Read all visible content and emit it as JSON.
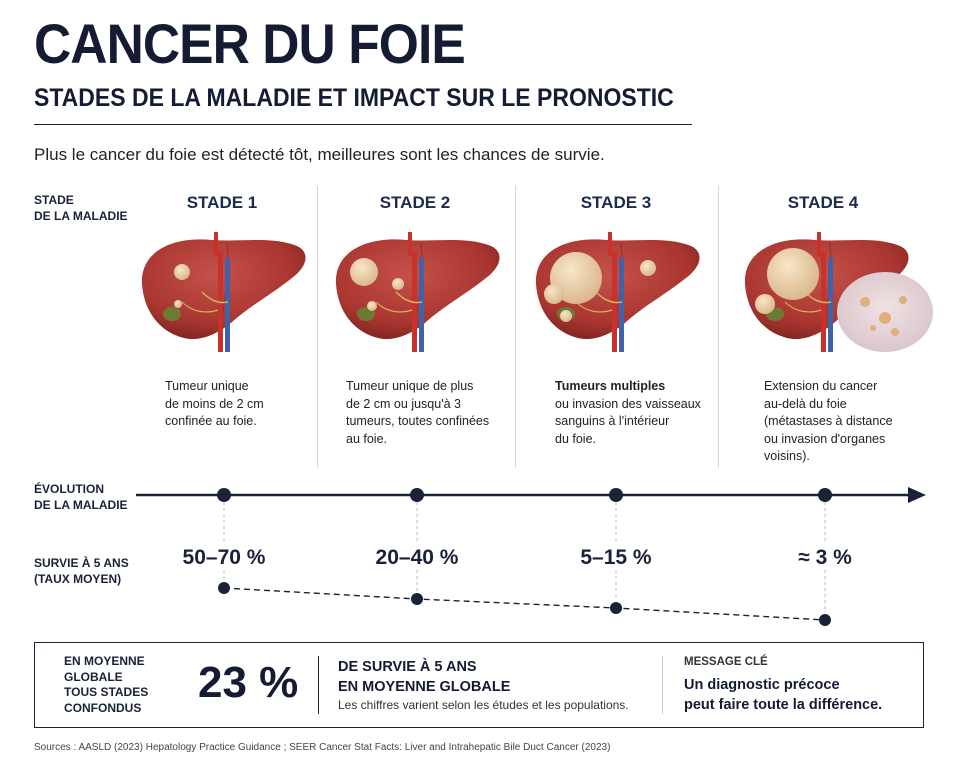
{
  "title": "CANCER DU FOIE",
  "subtitle": "STADES DE LA MALADIE ET IMPACT SUR LE PRONOSTIC",
  "intro": "Plus le cancer du foie est détecté tôt, meilleures sont les chances de survie.",
  "row_labels": {
    "stage": [
      "STADE",
      "DE LA MALADIE"
    ],
    "evolution": [
      "ÉVOLUTION",
      "DE LA MALADIE"
    ],
    "survival": [
      "SURVIE À 5 ANS",
      "(TAUX MOYEN)"
    ]
  },
  "stages": [
    {
      "title": "STADE 1",
      "bold": "",
      "lines": [
        "Tumeur unique",
        "de moins de 2 cm",
        "confinée au foie."
      ],
      "survival": "50–70 %",
      "survival_value": 60
    },
    {
      "title": "STADE 2",
      "bold": "",
      "lines": [
        "Tumeur unique de plus",
        "de 2 cm ou jusqu'à 3",
        "tumeurs, toutes confinées",
        "au foie."
      ],
      "survival": "20–40 %",
      "survival_value": 30
    },
    {
      "title": "STADE 3",
      "bold": "Tumeurs multiples",
      "lines": [
        "ou invasion des vaisseaux",
        "sanguins à l'intérieur",
        "du foie."
      ],
      "survival": "5–15 %",
      "survival_value": 10
    },
    {
      "title": "STADE 4",
      "bold": "",
      "lines": [
        "Extension du cancer",
        "au-delà du foie",
        "(métastases à distance",
        "ou invasion d'organes",
        "voisins)."
      ],
      "survival": "≈ 3 %",
      "survival_value": 3
    }
  ],
  "summary": {
    "label": [
      "EN MOYENNE",
      "GLOBALE",
      "TOUS STADES",
      "CONFONDUS"
    ],
    "value": "23 %",
    "headline": [
      "DE SURVIE À 5 ANS",
      "EN MOYENNE GLOBALE"
    ],
    "note": "Les chiffres varient selon les études et les populations.",
    "key_label": "MESSAGE CLÉ",
    "key_message": [
      "Un diagnostic précoce",
      "peut faire toute la différence."
    ]
  },
  "sources": "Sources : AASLD (2023) Hepatology Practice Guidance ; SEER Cancer Stat Facts: Liver and Intrahepatic Bile Duct Cancer (2023)",
  "colors": {
    "navy": "#1a2238",
    "liver": "#a8352f",
    "tumor": "#e8cfa6",
    "vessel_red": "#c8322b",
    "vessel_blue": "#3f62a8",
    "gallbladder": "#6e7a33"
  }
}
